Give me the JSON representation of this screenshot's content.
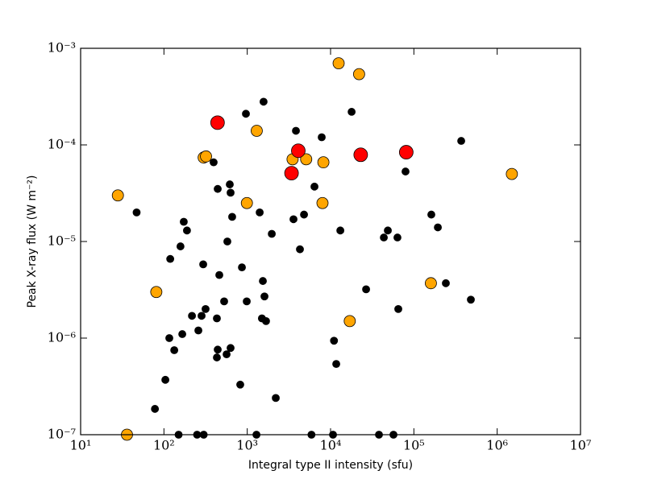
{
  "chart_data": {
    "type": "scatter",
    "xlabel": "Integral type II intensity (sfu)",
    "ylabel": "Peak X-ray flux (W m⁻²)",
    "xscale": "log",
    "yscale": "log",
    "xlim": [
      10,
      10000000
    ],
    "ylim": [
      1e-07,
      0.001
    ],
    "xticks": [
      {
        "value": 10,
        "label": "10¹"
      },
      {
        "value": 100,
        "label": "10²"
      },
      {
        "value": 1000,
        "label": "10³"
      },
      {
        "value": 10000,
        "label": "10⁴"
      },
      {
        "value": 100000,
        "label": "10⁵"
      },
      {
        "value": 1000000,
        "label": "10⁶"
      },
      {
        "value": 10000000,
        "label": "10⁷"
      }
    ],
    "yticks": [
      {
        "value": 1e-07,
        "label": "10⁻⁷"
      },
      {
        "value": 1e-06,
        "label": "10⁻⁶"
      },
      {
        "value": 1e-05,
        "label": "10⁻⁵"
      },
      {
        "value": 0.0001,
        "label": "10⁻⁴"
      },
      {
        "value": 0.001,
        "label": "10⁻³"
      }
    ],
    "series": [
      {
        "color": "#000000",
        "x": [
          78,
          104,
          116,
          133,
          166,
          150,
          250,
          300,
          217,
          259,
          283,
          316,
          296,
          432,
          462,
          432,
          442,
          565,
          631,
          528,
          577,
          617,
          659,
          631,
          395,
          442,
          824,
          863,
          986,
          964,
          1570,
          1410,
          1970,
          1500,
          1680,
          1540,
          1610,
          2200,
          1290,
          173,
          189,
          158,
          47,
          119,
          5900,
          10700,
          38100,
          56900,
          4290,
          4800,
          3590,
          3840,
          6410,
          7830,
          13100,
          17900,
          11000,
          11700,
          26700,
          43600,
          48700,
          65000,
          63500,
          79400,
          162000,
          194000,
          242000,
          370000,
          483000
        ],
        "values": [
          1.85e-07,
          3.7e-07,
          1e-06,
          7.5e-07,
          1.1e-06,
          1e-07,
          1e-07,
          1e-07,
          1.7e-06,
          1.2e-06,
          1.7e-06,
          2e-06,
          5.8e-06,
          1.6e-06,
          4.5e-06,
          6.3e-07,
          7.6e-07,
          6.8e-07,
          7.9e-07,
          2.4e-06,
          1e-05,
          3.9e-05,
          1.8e-05,
          3.2e-05,
          6.6e-05,
          3.5e-05,
          3.3e-07,
          5.4e-06,
          2.4e-06,
          0.00021,
          0.00028,
          2e-05,
          1.2e-05,
          1.6e-06,
          1.5e-06,
          3.9e-06,
          2.7e-06,
          2.4e-07,
          1e-07,
          1.6e-05,
          1.3e-05,
          8.9e-06,
          2e-05,
          6.6e-06,
          1e-07,
          1e-07,
          1e-07,
          1e-07,
          8.3e-06,
          1.9e-05,
          1.7e-05,
          0.00014,
          3.7e-05,
          0.00012,
          1.3e-05,
          0.00022,
          9.4e-07,
          5.4e-07,
          3.2e-06,
          1.1e-05,
          1.3e-05,
          2e-06,
          1.1e-05,
          5.3e-05,
          1.9e-05,
          1.4e-05,
          3.7e-06,
          0.00011,
          2.5e-06
        ]
      },
      {
        "color": "#ffa500",
        "x": [
          28,
          81,
          36,
          300,
          320,
          990,
          1300,
          3500,
          5100,
          8200,
          8000,
          12500,
          22000,
          17000,
          160000,
          1500000
        ],
        "values": [
          3e-05,
          3e-06,
          1e-07,
          7.4e-05,
          7.6e-05,
          2.5e-05,
          0.00014,
          7.1e-05,
          7.1e-05,
          6.6e-05,
          2.5e-05,
          0.0007,
          0.00054,
          1.5e-06,
          3.7e-06,
          5e-05
        ]
      },
      {
        "color": "#ff0000",
        "x": [
          440,
          3400,
          4100,
          23000,
          81000
        ],
        "values": [
          0.00017,
          5.1e-05,
          8.7e-05,
          7.9e-05,
          8.4e-05
        ]
      }
    ]
  }
}
